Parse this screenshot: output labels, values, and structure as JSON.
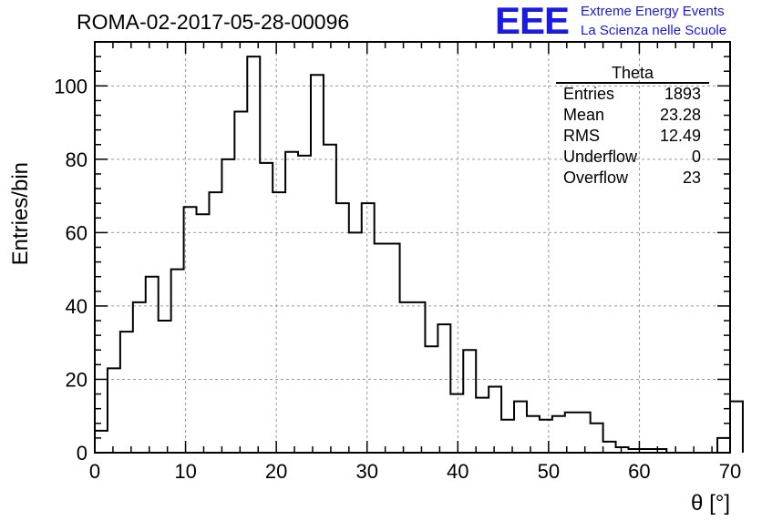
{
  "header": {
    "run_title": "ROMA-02-2017-05-28-00096",
    "logo_text": "EEE",
    "logo_line1": "Extreme Energy Events",
    "logo_line2": "La Scienza nelle Scuole"
  },
  "stats": {
    "title": "Theta",
    "rows": [
      {
        "label": "Entries",
        "value": "1893"
      },
      {
        "label": "Mean",
        "value": "23.28"
      },
      {
        "label": "RMS",
        "value": "12.49"
      },
      {
        "label": "Underflow",
        "value": "0"
      },
      {
        "label": "Overflow",
        "value": "23"
      }
    ]
  },
  "chart_data": {
    "type": "bar",
    "histogram": true,
    "xlabel": "θ [°]",
    "ylabel": "Entries/bin",
    "xlim": [
      0,
      70
    ],
    "ylim": [
      0,
      112
    ],
    "bin_width": 1.4,
    "xticks": [
      0,
      10,
      20,
      30,
      40,
      50,
      60,
      70
    ],
    "yticks": [
      0,
      20,
      40,
      60,
      80,
      100
    ],
    "grid": true,
    "values": [
      6,
      23,
      33,
      41,
      48,
      36,
      50,
      67,
      65,
      71,
      80,
      93,
      108,
      79,
      71,
      82,
      81,
      103,
      84,
      68,
      60,
      68,
      57,
      57,
      41,
      41,
      29,
      35,
      16,
      28,
      15,
      18,
      9,
      14,
      10,
      9,
      10,
      11,
      11,
      8,
      3,
      1.5,
      1,
      1,
      1,
      0,
      0,
      0,
      0,
      4,
      14
    ]
  }
}
